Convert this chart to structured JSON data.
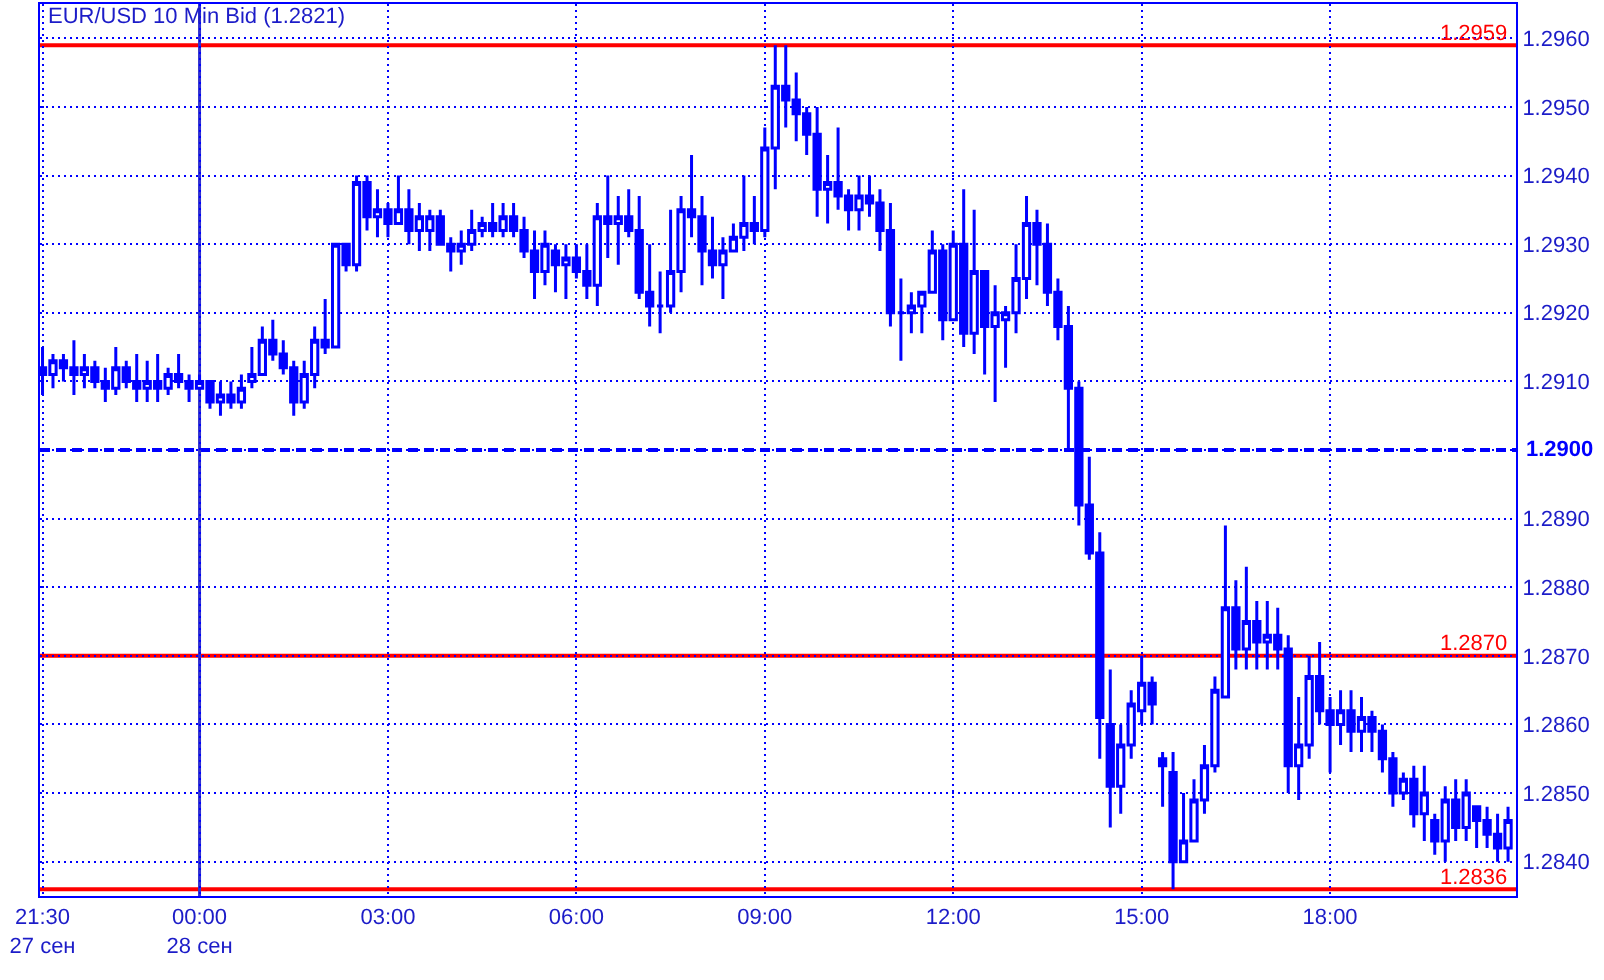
{
  "chart_data": {
    "type": "candlestick",
    "title": "EUR/USD 10 Min Bid (1.2821)",
    "color": "#0000ff",
    "x": [
      -2.5,
      -2.3333,
      -2.1667,
      -2,
      -1.8333,
      -1.6667,
      -1.5,
      -1.3333,
      -1.1667,
      -1,
      -0.8333,
      -0.6667,
      -0.5,
      -0.3333,
      -0.1667,
      0,
      0.1667,
      0.3333,
      0.5,
      0.6667,
      0.8333,
      1,
      1.1667,
      1.3333,
      1.5,
      1.6667,
      1.8333,
      2,
      2.1667,
      2.3333,
      2.5,
      2.6667,
      2.8333,
      3,
      3.1667,
      3.3333,
      3.5,
      3.6667,
      3.8333,
      4,
      4.1667,
      4.3333,
      4.5,
      4.6667,
      4.8333,
      5,
      5.1667,
      5.3333,
      5.5,
      5.6667,
      5.8333,
      6,
      6.1667,
      6.3333,
      6.5,
      6.6667,
      6.8333,
      7,
      7.1667,
      7.3333,
      7.5,
      7.6667,
      7.8333,
      8,
      8.1667,
      8.3333,
      8.5,
      8.6667,
      8.8333,
      9,
      9.1667,
      9.3333,
      9.5,
      9.6667,
      9.8333,
      10,
      10.1667,
      10.3333,
      10.5,
      10.6667,
      10.8333,
      11,
      11.1667,
      11.3333,
      11.5,
      11.6667,
      11.8333,
      12,
      12.1667,
      12.3333,
      12.5,
      12.6667,
      12.8333,
      13,
      13.1667,
      13.3333,
      13.5,
      13.6667,
      13.8333,
      14,
      14.1667,
      14.3333,
      14.5,
      14.6667,
      14.8333,
      15,
      15.1667,
      15.3333,
      15.5,
      15.6667,
      15.8333,
      16,
      16.1667,
      16.3333,
      16.5,
      16.6667,
      16.8333,
      17,
      17.1667,
      17.3333,
      17.5,
      17.6667,
      17.8333,
      18,
      18.1667,
      18.3333,
      18.5,
      18.6667,
      18.8333,
      19,
      19.1667,
      19.3333,
      19.5,
      19.6667,
      19.8333,
      20,
      20.1667,
      20.3333,
      20.5,
      20.6667,
      20.8333
    ],
    "ohlc": [
      [
        1.2912,
        1.2915,
        1.2908,
        1.2911
      ],
      [
        1.2911,
        1.2914,
        1.2909,
        1.2913
      ],
      [
        1.2913,
        1.2914,
        1.291,
        1.2912
      ],
      [
        1.2912,
        1.2916,
        1.2908,
        1.2911
      ],
      [
        1.2911,
        1.2914,
        1.2909,
        1.2912
      ],
      [
        1.2912,
        1.2913,
        1.2909,
        1.291
      ],
      [
        1.291,
        1.2912,
        1.2907,
        1.2909
      ],
      [
        1.2909,
        1.2915,
        1.2908,
        1.2912
      ],
      [
        1.2912,
        1.2913,
        1.2909,
        1.291
      ],
      [
        1.291,
        1.2914,
        1.2907,
        1.2909
      ],
      [
        1.2909,
        1.2913,
        1.2907,
        1.291
      ],
      [
        1.291,
        1.2914,
        1.2907,
        1.2909
      ],
      [
        1.2909,
        1.2912,
        1.2908,
        1.2911
      ],
      [
        1.2911,
        1.2914,
        1.2909,
        1.291
      ],
      [
        1.291,
        1.2911,
        1.2907,
        1.2909
      ],
      [
        1.2909,
        1.2911,
        1.2909,
        1.291
      ],
      [
        1.291,
        1.291,
        1.2906,
        1.2907
      ],
      [
        1.2907,
        1.291,
        1.2905,
        1.2908
      ],
      [
        1.2908,
        1.291,
        1.2906,
        1.2907
      ],
      [
        1.2907,
        1.2911,
        1.2906,
        1.2909
      ],
      [
        1.291,
        1.2915,
        1.2909,
        1.2911
      ],
      [
        1.2911,
        1.2918,
        1.2911,
        1.2916
      ],
      [
        1.2916,
        1.2919,
        1.2913,
        1.2914
      ],
      [
        1.2914,
        1.2916,
        1.2911,
        1.2912
      ],
      [
        1.2912,
        1.2913,
        1.2905,
        1.2907
      ],
      [
        1.2907,
        1.2913,
        1.2906,
        1.2911
      ],
      [
        1.2911,
        1.2918,
        1.2909,
        1.2916
      ],
      [
        1.2916,
        1.2922,
        1.2914,
        1.2915
      ],
      [
        1.2915,
        1.293,
        1.2915,
        1.293
      ],
      [
        1.293,
        1.293,
        1.2926,
        1.2927
      ],
      [
        1.2927,
        1.294,
        1.2926,
        1.2939
      ],
      [
        1.2939,
        1.294,
        1.2932,
        1.2934
      ],
      [
        1.2934,
        1.2938,
        1.2931,
        1.2935
      ],
      [
        1.2935,
        1.2936,
        1.2931,
        1.2933
      ],
      [
        1.2933,
        1.294,
        1.2933,
        1.2935
      ],
      [
        1.2935,
        1.2938,
        1.293,
        1.2932
      ],
      [
        1.2932,
        1.2936,
        1.2929,
        1.2934
      ],
      [
        1.2932,
        1.2935,
        1.2929,
        1.2934
      ],
      [
        1.2934,
        1.2935,
        1.293,
        1.293
      ],
      [
        1.293,
        1.2931,
        1.2926,
        1.2929
      ],
      [
        1.2929,
        1.2932,
        1.2927,
        1.293
      ],
      [
        1.293,
        1.2935,
        1.2929,
        1.2932
      ],
      [
        1.2932,
        1.2934,
        1.2931,
        1.2933
      ],
      [
        1.2933,
        1.2936,
        1.2931,
        1.2932
      ],
      [
        1.2932,
        1.2936,
        1.2931,
        1.2934
      ],
      [
        1.2934,
        1.2936,
        1.2931,
        1.2932
      ],
      [
        1.2932,
        1.2934,
        1.2928,
        1.2929
      ],
      [
        1.2929,
        1.2932,
        1.2922,
        1.2926
      ],
      [
        1.2926,
        1.2932,
        1.2924,
        1.293
      ],
      [
        1.2929,
        1.293,
        1.2923,
        1.2927
      ],
      [
        1.2927,
        1.293,
        1.2922,
        1.2928
      ],
      [
        1.2928,
        1.293,
        1.2925,
        1.2926
      ],
      [
        1.2926,
        1.293,
        1.2922,
        1.2924
      ],
      [
        1.2924,
        1.2936,
        1.2921,
        1.2934
      ],
      [
        1.2934,
        1.294,
        1.2928,
        1.2933
      ],
      [
        1.2933,
        1.2937,
        1.2927,
        1.2934
      ],
      [
        1.2934,
        1.2938,
        1.2931,
        1.2932
      ],
      [
        1.2932,
        1.2937,
        1.2922,
        1.2923
      ],
      [
        1.2923,
        1.293,
        1.2918,
        1.2921
      ],
      [
        1.2921,
        1.2926,
        1.2917,
        1.2921
      ],
      [
        1.2921,
        1.2935,
        1.292,
        1.2926
      ],
      [
        1.2926,
        1.2937,
        1.2923,
        1.2935
      ],
      [
        1.2935,
        1.2943,
        1.2931,
        1.2934
      ],
      [
        1.2934,
        1.2937,
        1.2924,
        1.2929
      ],
      [
        1.2929,
        1.2934,
        1.2925,
        1.2927
      ],
      [
        1.2927,
        1.2931,
        1.2922,
        1.2929
      ],
      [
        1.2929,
        1.2933,
        1.2929,
        1.2931
      ],
      [
        1.2931,
        1.294,
        1.2929,
        1.2933
      ],
      [
        1.2933,
        1.2937,
        1.293,
        1.2932
      ],
      [
        1.2932,
        1.2947,
        1.2931,
        1.2944
      ],
      [
        1.2944,
        1.2959,
        1.2938,
        1.2953
      ],
      [
        1.2953,
        1.2959,
        1.2947,
        1.2951
      ],
      [
        1.2951,
        1.2955,
        1.2945,
        1.2949
      ],
      [
        1.2949,
        1.295,
        1.2943,
        1.2946
      ],
      [
        1.2946,
        1.295,
        1.2934,
        1.2938
      ],
      [
        1.2938,
        1.2943,
        1.2933,
        1.2939
      ],
      [
        1.2939,
        1.2947,
        1.2935,
        1.2937
      ],
      [
        1.2937,
        1.2938,
        1.2932,
        1.2935
      ],
      [
        1.2935,
        1.294,
        1.2932,
        1.2937
      ],
      [
        1.2937,
        1.294,
        1.2934,
        1.2936
      ],
      [
        1.2936,
        1.2938,
        1.2929,
        1.2932
      ],
      [
        1.2932,
        1.2936,
        1.2918,
        1.292
      ],
      [
        1.292,
        1.2925,
        1.2913,
        1.292
      ],
      [
        1.292,
        1.2923,
        1.2917,
        1.2921
      ],
      [
        1.2921,
        1.2923,
        1.2917,
        1.2923
      ],
      [
        1.2923,
        1.2932,
        1.2923,
        1.2929
      ],
      [
        1.2929,
        1.293,
        1.2916,
        1.2919
      ],
      [
        1.2919,
        1.2932,
        1.2919,
        1.293
      ],
      [
        1.293,
        1.2938,
        1.2915,
        1.2917
      ],
      [
        1.2917,
        1.2935,
        1.2914,
        1.2926
      ],
      [
        1.2926,
        1.2926,
        1.2911,
        1.2918
      ],
      [
        1.2918,
        1.2924,
        1.2907,
        1.292
      ],
      [
        1.2919,
        1.2921,
        1.2912,
        1.292
      ],
      [
        1.292,
        1.293,
        1.2917,
        1.2925
      ],
      [
        1.2925,
        1.2937,
        1.2922,
        1.2933
      ],
      [
        1.2933,
        1.2935,
        1.2924,
        1.293
      ],
      [
        1.293,
        1.2933,
        1.2921,
        1.2923
      ],
      [
        1.2923,
        1.2925,
        1.2916,
        1.2918
      ],
      [
        1.2918,
        1.2921,
        1.29,
        1.2909
      ],
      [
        1.2909,
        1.291,
        1.2889,
        1.2892
      ],
      [
        1.2892,
        1.2899,
        1.2884,
        1.2885
      ],
      [
        1.2885,
        1.2888,
        1.2855,
        1.2861
      ],
      [
        1.286,
        1.2868,
        1.2845,
        1.2851
      ],
      [
        1.2851,
        1.286,
        1.2847,
        1.2857
      ],
      [
        1.2857,
        1.2865,
        1.2855,
        1.2863
      ],
      [
        1.2862,
        1.287,
        1.286,
        1.2866
      ],
      [
        1.2866,
        1.2867,
        1.286,
        1.2863
      ],
      [
        1.2855,
        1.2856,
        1.2848,
        1.2854
      ],
      [
        1.2853,
        1.2856,
        1.2836,
        1.284
      ],
      [
        1.284,
        1.285,
        1.284,
        1.2843
      ],
      [
        1.2843,
        1.2852,
        1.2843,
        1.2849
      ],
      [
        1.2849,
        1.2857,
        1.2847,
        1.2854
      ],
      [
        1.2854,
        1.2867,
        1.2853,
        1.2865
      ],
      [
        1.2864,
        1.2889,
        1.2864,
        1.2877
      ],
      [
        1.2877,
        1.2881,
        1.2868,
        1.2871
      ],
      [
        1.2871,
        1.2883,
        1.2868,
        1.2875
      ],
      [
        1.2875,
        1.2878,
        1.2868,
        1.2872
      ],
      [
        1.2872,
        1.2878,
        1.2868,
        1.2873
      ],
      [
        1.2873,
        1.2877,
        1.2868,
        1.2871
      ],
      [
        1.2871,
        1.2873,
        1.285,
        1.2854
      ],
      [
        1.2854,
        1.2864,
        1.2849,
        1.2857
      ],
      [
        1.2857,
        1.287,
        1.2855,
        1.2867
      ],
      [
        1.2867,
        1.2872,
        1.286,
        1.2862
      ],
      [
        1.2862,
        1.2864,
        1.2853,
        1.286
      ],
      [
        1.286,
        1.2865,
        1.2857,
        1.2862
      ],
      [
        1.2862,
        1.2865,
        1.2856,
        1.2859
      ],
      [
        1.2859,
        1.2864,
        1.2856,
        1.2861
      ],
      [
        1.2861,
        1.2862,
        1.2856,
        1.2859
      ],
      [
        1.2859,
        1.286,
        1.2853,
        1.2855
      ],
      [
        1.2855,
        1.2856,
        1.2848,
        1.285
      ],
      [
        1.285,
        1.2853,
        1.2849,
        1.2852
      ],
      [
        1.2852,
        1.2854,
        1.2845,
        1.2847
      ],
      [
        1.2847,
        1.2854,
        1.2843,
        1.285
      ],
      [
        1.2846,
        1.2847,
        1.2841,
        1.2843
      ],
      [
        1.2843,
        1.2851,
        1.284,
        1.2849
      ],
      [
        1.2849,
        1.2852,
        1.2843,
        1.2845
      ],
      [
        1.2845,
        1.2852,
        1.2843,
        1.285
      ],
      [
        1.2848,
        1.2848,
        1.2842,
        1.2846
      ],
      [
        1.2846,
        1.2848,
        1.2842,
        1.2844
      ],
      [
        1.2844,
        1.2847,
        1.284,
        1.2842
      ],
      [
        1.2842,
        1.2848,
        1.284,
        1.2846
      ]
    ],
    "xlim": [
      -2.54,
      20.96
    ],
    "xticks": [
      {
        "value": -2.5,
        "label": "21:30\n27 сен"
      },
      {
        "value": 0,
        "label": "00:00\n28 сен"
      },
      {
        "value": 3,
        "label": "03:00"
      },
      {
        "value": 6,
        "label": "06:00"
      },
      {
        "value": 9,
        "label": "09:00"
      },
      {
        "value": 12,
        "label": "12:00"
      },
      {
        "value": 15,
        "label": "15:00"
      },
      {
        "value": 18,
        "label": "18:00"
      }
    ],
    "ylim": [
      1.2835,
      1.2965
    ],
    "yticks": [
      {
        "value": 1.284,
        "label": "1.2840"
      },
      {
        "value": 1.285,
        "label": "1.2850"
      },
      {
        "value": 1.286,
        "label": "1.2860"
      },
      {
        "value": 1.287,
        "label": "1.2870"
      },
      {
        "value": 1.288,
        "label": "1.2880"
      },
      {
        "value": 1.289,
        "label": "1.2890"
      },
      {
        "value": 1.29,
        "label": null
      },
      {
        "value": 1.291,
        "label": "1.2910"
      },
      {
        "value": 1.292,
        "label": "1.2920"
      },
      {
        "value": 1.293,
        "label": "1.2930"
      },
      {
        "value": 1.294,
        "label": "1.2940"
      },
      {
        "value": 1.295,
        "label": "1.2950"
      },
      {
        "value": 1.296,
        "label": "1.2960"
      }
    ],
    "ref_lines": [
      {
        "axis": "y",
        "value": 1.2959,
        "label": "1.2959",
        "color": "#ff0000"
      },
      {
        "axis": "y",
        "value": 1.287,
        "label": "1.2870",
        "color": "#ff0000"
      },
      {
        "axis": "y",
        "value": 1.2836,
        "label": "1.2836",
        "color": "#ff0000"
      },
      {
        "axis": "y",
        "value": 1.29,
        "label": "1.2900",
        "color": "#0000ff",
        "line_style": "dashed"
      },
      {
        "axis": "x",
        "value": 0,
        "color": "#3030d0"
      }
    ],
    "grid": true
  }
}
